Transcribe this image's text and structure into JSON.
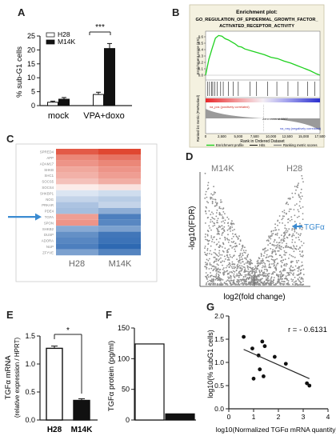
{
  "panel_labels": [
    "A",
    "B",
    "C",
    "D",
    "E",
    "F",
    "G"
  ],
  "chart_data": [
    {
      "panel": "A",
      "type": "bar",
      "ylabel": "% sub-G1 cells",
      "ylim": [
        0,
        25
      ],
      "yticks": [
        0,
        5,
        10,
        15,
        20,
        25
      ],
      "categories": [
        "mock",
        "VPA+doxo"
      ],
      "series": [
        {
          "name": "H28",
          "values": [
            1.2,
            4.0
          ],
          "errors": [
            0.4,
            0.8
          ],
          "color": "#ffffff"
        },
        {
          "name": "M14K",
          "values": [
            2.3,
            20.5
          ],
          "errors": [
            0.6,
            1.8
          ],
          "color": "#111111"
        }
      ],
      "annotation": "***",
      "legend": "top-left"
    },
    {
      "panel": "B",
      "type": "line",
      "title": "Enrichment plot:",
      "subtitle_lines": [
        "GO_REGULATION_OF_EPIDERMAL_GROWTH_FACTOR_",
        "ACTIVATED_RECEPTOR_ACTIVITY"
      ],
      "ylabel": "Enrichment score (ES)",
      "ylabel2": "Ranked list metric (PreRanked)",
      "xlabel": "Rank in Ordered Dataset",
      "xticks": [
        0,
        2500,
        5000,
        7500,
        10000,
        12500,
        15000,
        17500
      ],
      "xlim": [
        0,
        17500
      ],
      "yticks": [
        "0.6",
        "0.5",
        "0.4",
        "0.3",
        "0.2",
        "0.1",
        "0.0"
      ],
      "ylim": [
        -0.05,
        0.65
      ],
      "x": [
        0,
        500,
        1000,
        1500,
        2000,
        2500,
        3000,
        3500,
        4000,
        4500,
        5000,
        5500,
        6000,
        7000,
        8000,
        9000,
        10000,
        11000,
        12000,
        13000,
        14000,
        15000,
        16000,
        17000,
        17500
      ],
      "y": [
        0.0,
        0.25,
        0.42,
        0.58,
        0.62,
        0.61,
        0.57,
        0.55,
        0.52,
        0.49,
        0.45,
        0.44,
        0.41,
        0.38,
        0.35,
        0.32,
        0.28,
        0.26,
        0.22,
        0.19,
        0.15,
        0.11,
        0.07,
        0.02,
        0.0
      ],
      "hits": [
        300,
        600,
        900,
        1100,
        1400,
        1800,
        2300,
        2700,
        3500,
        4200,
        5000,
        6800,
        7800,
        9500,
        10900,
        12600,
        14100,
        15600,
        16700
      ],
      "pos_label": "na_pos (positively correlated)",
      "neg_label": "na_neg (negatively correlated)",
      "zero_label": "Zero cross at 8867",
      "legend": [
        "Enrichment profile",
        "Hits",
        "Ranking metric scores"
      ]
    },
    {
      "panel": "C",
      "type": "heatmap",
      "columns": [
        "H28",
        "M14K"
      ],
      "rows": [
        "SPRED4",
        "APP",
        "ADAM17",
        "SHKB",
        "SHC1",
        "SOCS5",
        "SOCS4",
        "SHKBP1",
        "NOG",
        "PRKAR",
        "PDE4",
        "TGFA",
        "SPON",
        "SHKB2",
        "DUSP",
        "ADORA",
        "NUP",
        "ZFYVE"
      ],
      "values": [
        [
          0.85,
          0.95
        ],
        [
          0.62,
          0.72
        ],
        [
          0.55,
          0.62
        ],
        [
          0.45,
          0.55
        ],
        [
          0.4,
          0.5
        ],
        [
          0.32,
          0.42
        ],
        [
          0.1,
          0.15
        ],
        [
          -0.15,
          -0.2
        ],
        [
          -0.25,
          -0.3
        ],
        [
          -0.35,
          -0.25
        ],
        [
          -0.38,
          -0.48
        ],
        [
          0.5,
          -0.75
        ],
        [
          0.55,
          -0.7
        ],
        [
          -0.5,
          -0.55
        ],
        [
          -0.65,
          -0.8
        ],
        [
          -0.7,
          -0.82
        ],
        [
          -0.75,
          -0.88
        ],
        [
          -0.55,
          -0.72
        ]
      ],
      "arrow_row": "TGFA"
    },
    {
      "panel": "D",
      "type": "scatter",
      "xlabel": "log2(fold change)",
      "ylabel": "-log10(FDR)",
      "left_label": "M14K",
      "right_label": "H28",
      "highlight": "TGFα"
    },
    {
      "panel": "E",
      "type": "bar",
      "ylabel": "TGFα mRNA (relative expression / HPRT)",
      "ylim": [
        0,
        1.5
      ],
      "yticks": [
        0.0,
        0.5,
        1.0,
        1.5
      ],
      "categories": [
        "H28",
        "M14K"
      ],
      "values": [
        1.28,
        0.35
      ],
      "errors": [
        0.04,
        0.03
      ],
      "colors": [
        "#ffffff",
        "#111111"
      ],
      "annotation": "*"
    },
    {
      "panel": "F",
      "type": "bar",
      "ylabel": "TGFα protein (pg/ml)",
      "ylim": [
        0,
        150
      ],
      "yticks": [
        0,
        50,
        100,
        150
      ],
      "categories": [
        "H28",
        "M14K"
      ],
      "values": [
        124,
        10
      ],
      "colors": [
        "#ffffff",
        "#111111"
      ]
    },
    {
      "panel": "G",
      "type": "scatter",
      "xlabel": "log10(Normalized TGFα mRNA quantity)",
      "ylabel": "log10(% subG1 cells)",
      "xlim": [
        0,
        4
      ],
      "ylim": [
        0.0,
        2.0
      ],
      "xticks": [
        0,
        1,
        2,
        3,
        4
      ],
      "yticks": [
        "0.0",
        "0.5",
        "1.0",
        "1.5",
        "2.0"
      ],
      "points": [
        [
          0.6,
          1.55
        ],
        [
          0.95,
          1.3
        ],
        [
          1.2,
          1.15
        ],
        [
          1.35,
          1.45
        ],
        [
          1.45,
          1.35
        ],
        [
          1.25,
          0.85
        ],
        [
          1.0,
          0.65
        ],
        [
          1.4,
          0.7
        ],
        [
          1.85,
          1.12
        ],
        [
          2.3,
          0.97
        ],
        [
          3.15,
          0.55
        ],
        [
          3.25,
          0.5
        ]
      ],
      "fit": [
        [
          0.6,
          1.28
        ],
        [
          3.25,
          0.65
        ]
      ],
      "annotation": "r = - 0.6131"
    }
  ]
}
